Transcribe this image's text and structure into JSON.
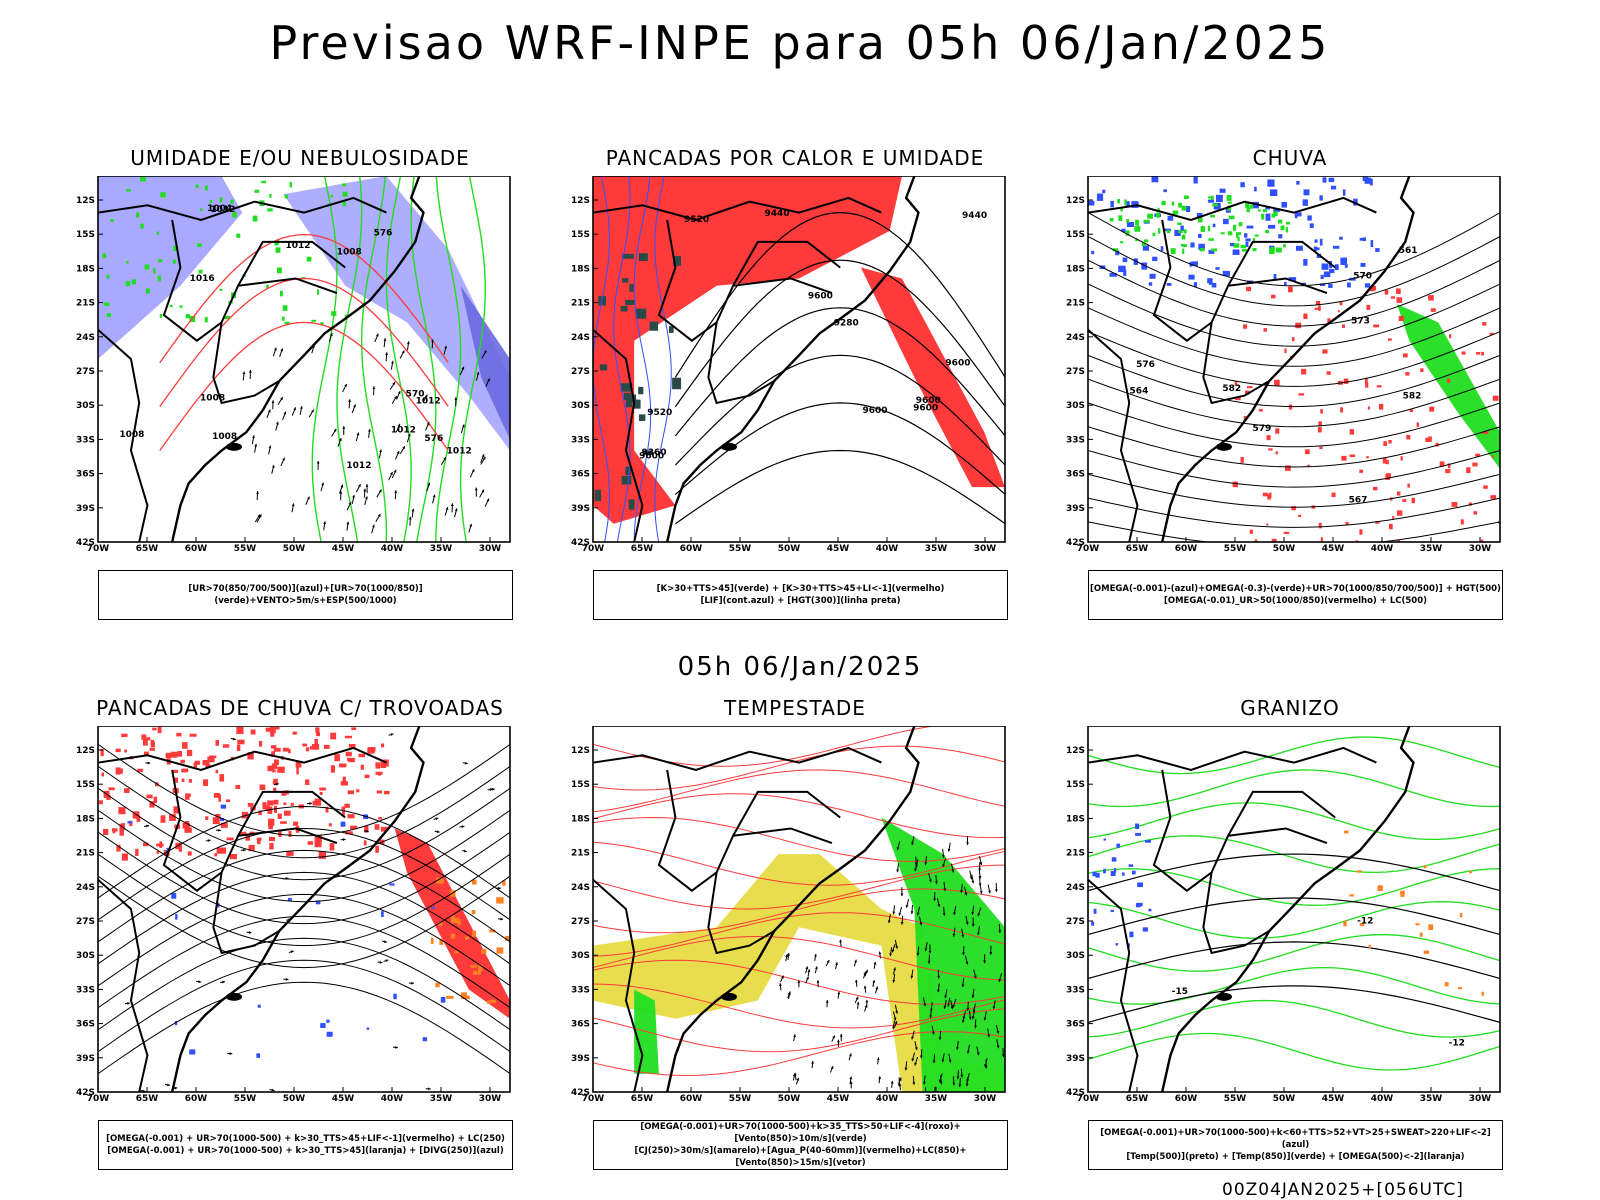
{
  "main_title": "Previsao WRF-INPE  para 05h 06/Jan/2025",
  "mid_date": "05h 06/Jan/2025",
  "footer": "00Z04JAN2025+[056UTC]",
  "lat_labels": [
    "12S",
    "15S",
    "18S",
    "21S",
    "24S",
    "27S",
    "30S",
    "33S",
    "36S",
    "39S",
    "42S"
  ],
  "lon_labels": [
    "70W",
    "65W",
    "60W",
    "55W",
    "50W",
    "45W",
    "40W",
    "35W",
    "30W"
  ],
  "colors": {
    "blue": "#3050ff",
    "lavender": "#a0a0ff",
    "green": "#20dd20",
    "red": "#ff3a3a",
    "darkteal": "#2a4a48",
    "yellow": "#e6d93a",
    "orange": "#ff8020",
    "black": "#000000"
  },
  "panels": [
    {
      "title": "UMIDADE E/OU NEBULOSIDADE",
      "legend": [
        "[UR>70(850/700/500)](azul)+[UR>70(1000/850)](verde)+VENTO>5m/s+ESP(500/1000)"
      ],
      "contour_labels": [
        "1008",
        "1008",
        "1016",
        "1012",
        "1012",
        "1012",
        "1008",
        "1008",
        "1012",
        "1012",
        "1004",
        "1012",
        "570",
        "576",
        "576"
      ]
    },
    {
      "title": "PANCADAS POR CALOR E UMIDADE",
      "legend": [
        "[K>30+TTS>45](verde) + [K>30+TTS>45+LI<-1](vermelho)",
        "[LIF](cont.azul) + [HGT(300)](linha preta)"
      ],
      "contour_labels": [
        "9600",
        "9600",
        "9600",
        "9600",
        "9520",
        "9600",
        "9600",
        "9440",
        "9360",
        "9280",
        "9520",
        "9440"
      ]
    },
    {
      "title": "CHUVA",
      "legend": [
        "[OMEGA(-0.001)-(azul)+OMEGA(-0.3)-(verde)+UR>70(1000/850/700/500)] + HGT(500)",
        "[OMEGA(-0.01)_UR>50(1000/850)(vermelho) + LC(500)"
      ],
      "contour_labels": [
        "582",
        "582",
        "570",
        "573",
        "567",
        "564",
        "561",
        "579",
        "576"
      ]
    },
    {
      "title": "PANCADAS DE CHUVA C/ TROVOADAS",
      "legend": [
        "[OMEGA(-0.001) + UR>70(1000-500) + k>30_TTS>45+LIF<-1](vermelho) + LC(250)",
        "[OMEGA(-0.001) + UR>70(1000-500) + k>30_TTS>45](laranja) + [DIVG(250)](azul)"
      ],
      "contour_labels": []
    },
    {
      "title": "TEMPESTADE",
      "legend": [
        "[OMEGA(-0.001)+UR>70(1000-500)+k>35_TTS>50+LIF<-4](roxo)+[Vento(850)>10m/s](verde)",
        "[CJ(250)>30m/s](amarelo)+[Agua_P(40-60mm)](vermelho)+LC(850)+[Vento(850)>15m/s](vetor)"
      ],
      "contour_labels": []
    },
    {
      "title": "GRANIZO",
      "legend": [
        "[OMEGA(-0.001)+UR>70(1000-500)+k<60+TTS>52+VT>25+SWEAT>220+LIF<-2](azul)",
        "[Temp(500)](preto) + [Temp(850)](verde) + [OMEGA(500)<-2](laranja)"
      ],
      "contour_labels": [
        "-12",
        "-15",
        "-12"
      ]
    }
  ]
}
